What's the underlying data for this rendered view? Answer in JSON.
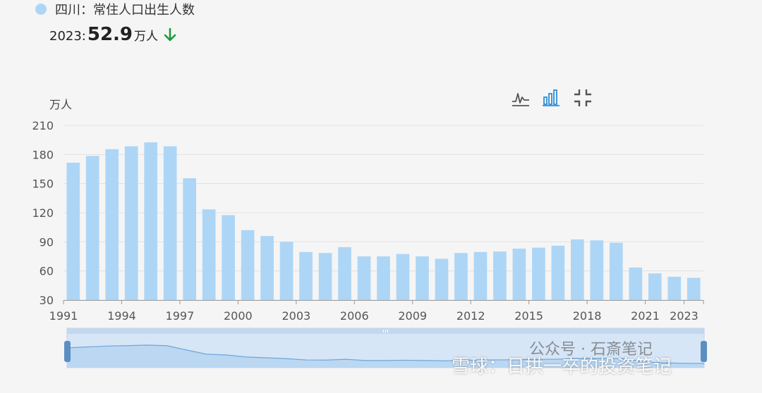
{
  "legend": {
    "label": "四川：常住人口出生人数",
    "color": "#add6f6"
  },
  "latest": {
    "year_label": "2023:",
    "value": "52.9",
    "unit": "万人",
    "trend": "down",
    "trend_color": "#1a9a3c"
  },
  "toolbar": {
    "icons": [
      "line-chart-icon",
      "bar-chart-icon",
      "collapse-icon"
    ],
    "active": "bar-chart-icon"
  },
  "watermark": {
    "text": "雪球：日拱一卒的投资笔记",
    "wechat_text": "公众号 · 石斎笔记"
  },
  "chart_data": {
    "type": "bar",
    "title": "",
    "ylabel": "万人",
    "xlabel": "",
    "ylim": [
      30,
      210
    ],
    "yticks": [
      30,
      60,
      90,
      120,
      150,
      180,
      210
    ],
    "xtick_labels": [
      "1991",
      "1994",
      "1997",
      "2000",
      "2003",
      "2006",
      "2009",
      "2012",
      "2015",
      "2018",
      "2021",
      "2023"
    ],
    "grid": true,
    "bar_color": "#add6f6",
    "categories": [
      "1991",
      "1992",
      "1993",
      "1994",
      "1995",
      "1996",
      "1997",
      "1998",
      "1999",
      "2000",
      "2001",
      "2002",
      "2003",
      "2004",
      "2005",
      "2006",
      "2007",
      "2008",
      "2009",
      "2010",
      "2011",
      "2012",
      "2013",
      "2014",
      "2015",
      "2016",
      "2017",
      "2018",
      "2019",
      "2020",
      "2021",
      "2022",
      "2023"
    ],
    "values": [
      171.5,
      178.5,
      185.5,
      188.5,
      192.5,
      188.5,
      155.5,
      123.5,
      117.5,
      102,
      96,
      90,
      79.5,
      78.5,
      84.5,
      75,
      75,
      77.5,
      75,
      72.5,
      78.5,
      79.5,
      80,
      83,
      84,
      86,
      92.5,
      91.5,
      89,
      63.5,
      57.5,
      54,
      52.9
    ],
    "zoom_range": [
      0,
      100
    ]
  }
}
